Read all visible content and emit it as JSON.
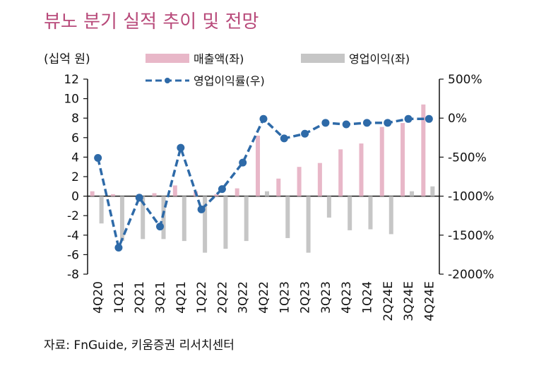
{
  "chart_data": {
    "type": "bar+line",
    "title": "뷰노 분기 실적 추이 및 전망",
    "unit_label": "(십억 원)",
    "categories": [
      "4Q20",
      "1Q21",
      "2Q21",
      "3Q21",
      "4Q21",
      "1Q22",
      "2Q22",
      "3Q22",
      "4Q22",
      "1Q23",
      "2Q23",
      "3Q23",
      "4Q23",
      "1Q24",
      "2Q24E",
      "3Q24E",
      "4Q24E"
    ],
    "series": [
      {
        "name": "매출액(좌)",
        "type": "bar",
        "axis": "left",
        "color": "#e8b7c8",
        "values": [
          0.5,
          0.2,
          0.0,
          0.3,
          1.1,
          0.5,
          0.2,
          0.8,
          6.2,
          1.8,
          3.0,
          3.4,
          4.8,
          5.4,
          7.1,
          7.5,
          9.4
        ]
      },
      {
        "name": "영업이익(좌)",
        "type": "bar",
        "axis": "left",
        "color": "#c6c6c6",
        "values": [
          -2.8,
          -4.6,
          -4.4,
          -4.4,
          -4.6,
          -5.8,
          -5.4,
          -4.6,
          0.5,
          -4.3,
          -5.8,
          -2.2,
          -3.5,
          -3.4,
          -3.9,
          0.5,
          1.0
        ]
      },
      {
        "name": "영업이익률(우)",
        "type": "line",
        "axis": "right",
        "color": "#2e6aa8",
        "values": [
          -510,
          -1660,
          -1020,
          -1390,
          -380,
          -1170,
          -910,
          -570,
          -10,
          -260,
          -200,
          -60,
          -80,
          -60,
          -60,
          -10,
          -10
        ]
      }
    ],
    "left_axis": {
      "min": -8,
      "max": 12,
      "ticks": [
        "12",
        "10",
        "8",
        "6",
        "4",
        "2",
        "0",
        "-2",
        "-4",
        "-6",
        "-8"
      ]
    },
    "right_axis": {
      "min": -2000,
      "max": 500,
      "ticks": [
        "500%",
        "0%",
        "-500%",
        "-1000%",
        "-1500%",
        "-2000%"
      ]
    },
    "source": "자료: FnGuide, 키움증권 리서치센터"
  }
}
